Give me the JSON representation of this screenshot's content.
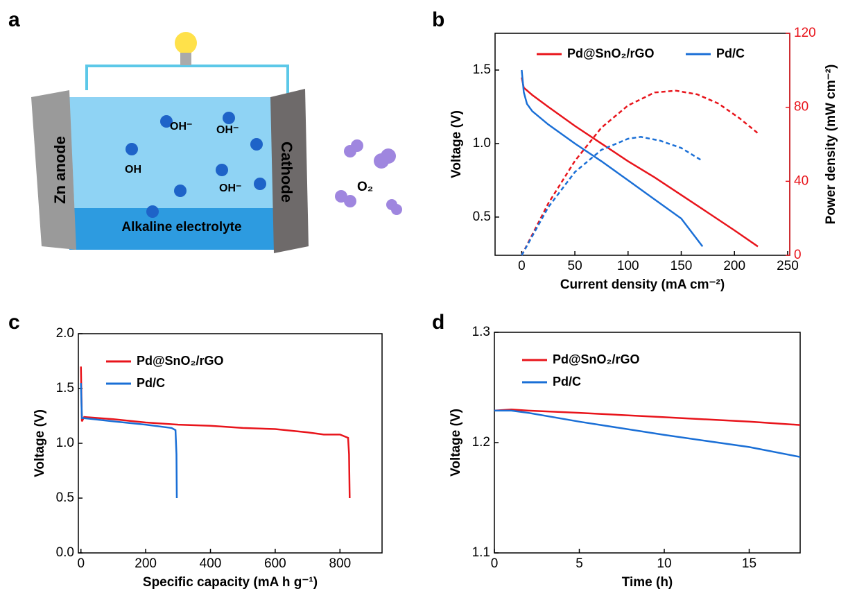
{
  "panel_labels": [
    "a",
    "b",
    "c",
    "d"
  ],
  "schematic": {
    "anode": "Zn anode",
    "cathode": "Cathode",
    "ions": [
      "OH",
      "OH⁻",
      "OH⁻",
      "OH⁻"
    ],
    "electrolyte": "Alkaline electrolyte",
    "gas": "O₂"
  },
  "chart_data": [
    {
      "type": "line",
      "xlabel": "Current density (mA cm⁻²)",
      "ylabel": "Voltage (V)",
      "y2label": "Power density (mW cm⁻²)",
      "y2_color": "#e8141b",
      "xlim": [
        -25,
        252
      ],
      "xticks": [
        0,
        50,
        100,
        150,
        200,
        250
      ],
      "ylim": [
        0.24,
        1.75
      ],
      "yticks": [
        {
          "value": 0.5,
          "label": "0.5"
        },
        {
          "value": 1.0,
          "label": "1.0"
        },
        {
          "value": 1.5,
          "label": "1.5"
        }
      ],
      "y2lim": [
        0,
        120
      ],
      "y2ticks": [
        0,
        40,
        80,
        120
      ],
      "legend": "upper center",
      "series": [
        {
          "name": "Pd@SnO₂/rGO",
          "color": "#e8141b",
          "x": [
            0,
            2,
            10,
            25,
            50,
            75,
            100,
            125,
            150,
            175,
            200,
            222
          ],
          "values": [
            1.45,
            1.38,
            1.33,
            1.25,
            1.12,
            1.0,
            0.88,
            0.77,
            0.65,
            0.53,
            0.41,
            0.3
          ]
        },
        {
          "name": "Pd/C",
          "color": "#1a6fd6",
          "x": [
            0,
            2,
            5,
            10,
            25,
            50,
            75,
            100,
            125,
            150,
            170
          ],
          "values": [
            1.5,
            1.35,
            1.27,
            1.22,
            1.13,
            1.0,
            0.88,
            0.75,
            0.62,
            0.49,
            0.3
          ]
        },
        {
          "color": "#e8141b",
          "linestyle": "dashed",
          "axis": "y2",
          "x": [
            0,
            25,
            50,
            75,
            100,
            125,
            145,
            165,
            185,
            205,
            222
          ],
          "values": [
            0,
            28,
            51,
            69,
            81,
            88,
            89,
            87,
            82,
            74,
            66
          ]
        },
        {
          "color": "#1a6fd6",
          "linestyle": "dashed",
          "axis": "y2",
          "x": [
            0,
            25,
            50,
            75,
            100,
            112,
            130,
            150,
            170
          ],
          "values": [
            0,
            26,
            45,
            57,
            63,
            64,
            62,
            58,
            51
          ]
        }
      ]
    },
    {
      "type": "line",
      "xlabel": "Specific capacity (mA h g⁻¹)",
      "ylabel": "Voltage (V)",
      "xlim": [
        -8,
        930
      ],
      "xticks": [
        0,
        200,
        400,
        600,
        800
      ],
      "ylim": [
        0,
        2
      ],
      "yticks": [
        {
          "value": 0,
          "label": "0.0"
        },
        0.5,
        {
          "value": 1,
          "label": "1.0"
        },
        1.5,
        {
          "value": 2,
          "label": "2.0"
        }
      ],
      "legend": "upper left",
      "series": [
        {
          "name": "Pd@SnO₂/rGO",
          "color": "#e8141b",
          "x": [
            0,
            3,
            10,
            100,
            200,
            300,
            400,
            500,
            600,
            700,
            750,
            800,
            825,
            828,
            830
          ],
          "values": [
            1.7,
            1.2,
            1.24,
            1.22,
            1.19,
            1.17,
            1.16,
            1.14,
            1.13,
            1.1,
            1.08,
            1.08,
            1.05,
            0.9,
            0.5
          ]
        },
        {
          "name": "Pd/C",
          "color": "#1a6fd6",
          "x": [
            0,
            3,
            10,
            100,
            200,
            280,
            292,
            295,
            296
          ],
          "values": [
            1.55,
            1.23,
            1.23,
            1.2,
            1.17,
            1.14,
            1.12,
            0.9,
            0.5
          ]
        }
      ]
    },
    {
      "type": "line",
      "xlabel": "Time (h)",
      "ylabel": "Voltage (V)",
      "xlim": [
        0,
        18
      ],
      "xticks": [
        0,
        5,
        10,
        15
      ],
      "ylim": [
        1.1,
        1.3
      ],
      "yticks": [
        1.1,
        1.2,
        1.3
      ],
      "legend": "upper left",
      "series": [
        {
          "name": "Pd@SnO₂/rGO",
          "color": "#e8141b",
          "x": [
            0,
            1,
            2,
            5,
            10,
            15,
            18
          ],
          "values": [
            1.229,
            1.23,
            1.229,
            1.227,
            1.223,
            1.219,
            1.216
          ]
        },
        {
          "name": "Pd/C",
          "color": "#1a6fd6",
          "x": [
            0,
            1,
            2,
            5,
            10,
            15,
            18
          ],
          "values": [
            1.229,
            1.229,
            1.227,
            1.219,
            1.207,
            1.196,
            1.187
          ]
        }
      ]
    }
  ]
}
